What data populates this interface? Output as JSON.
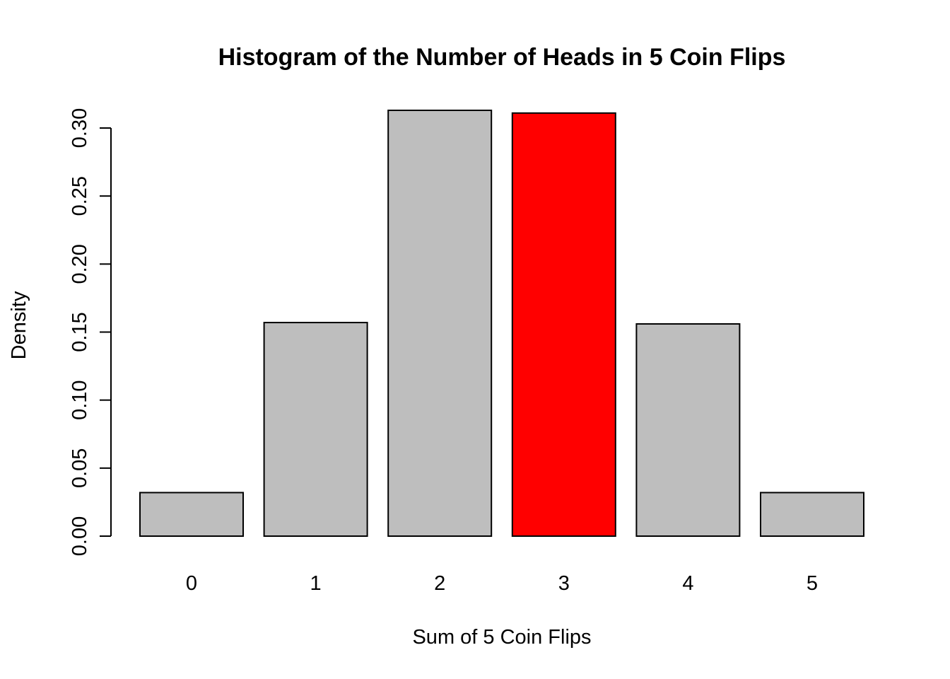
{
  "chart_data": {
    "type": "bar",
    "title": "Histogram of the Number of Heads in 5 Coin Flips",
    "xlabel": "Sum of 5 Coin Flips",
    "ylabel": "Density",
    "categories": [
      "0",
      "1",
      "2",
      "3",
      "4",
      "5"
    ],
    "values": [
      0.032,
      0.157,
      0.313,
      0.311,
      0.156,
      0.032
    ],
    "ylim": [
      0,
      0.3
    ],
    "yticks": [
      "0.00",
      "0.05",
      "0.10",
      "0.15",
      "0.20",
      "0.25",
      "0.30"
    ],
    "bar_color": "#bebebe",
    "highlight_category": "3",
    "highlight_color": "#ff0000",
    "grid": false,
    "legend": "none"
  }
}
